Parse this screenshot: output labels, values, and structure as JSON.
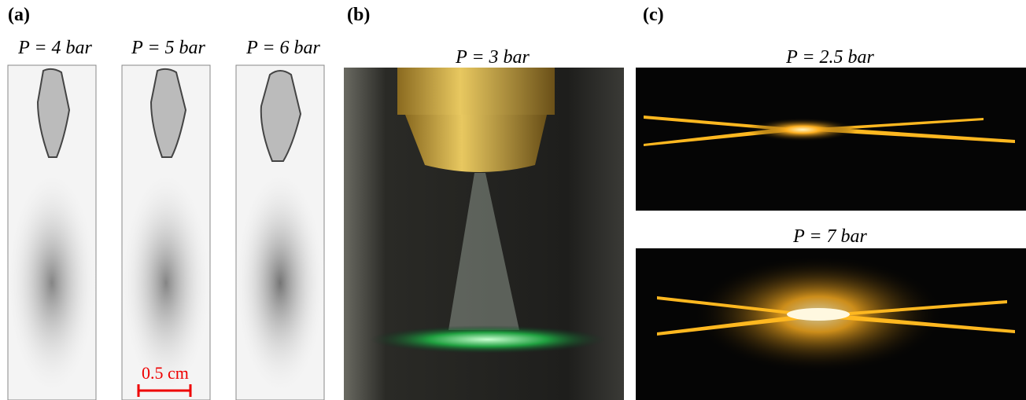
{
  "panels": [
    {
      "label": "(a)",
      "images": [
        {
          "title": "P = 4 bar"
        },
        {
          "title": "P = 5 bar"
        },
        {
          "title": "P = 6 bar"
        }
      ],
      "scale_bar": "0.5 cm"
    },
    {
      "label": "(b)",
      "images": [
        {
          "title": "P = 3 bar"
        }
      ]
    },
    {
      "label": "(c)",
      "images": [
        {
          "title": "P = 2.5 bar"
        },
        {
          "title": "P = 7 bar"
        }
      ]
    }
  ]
}
